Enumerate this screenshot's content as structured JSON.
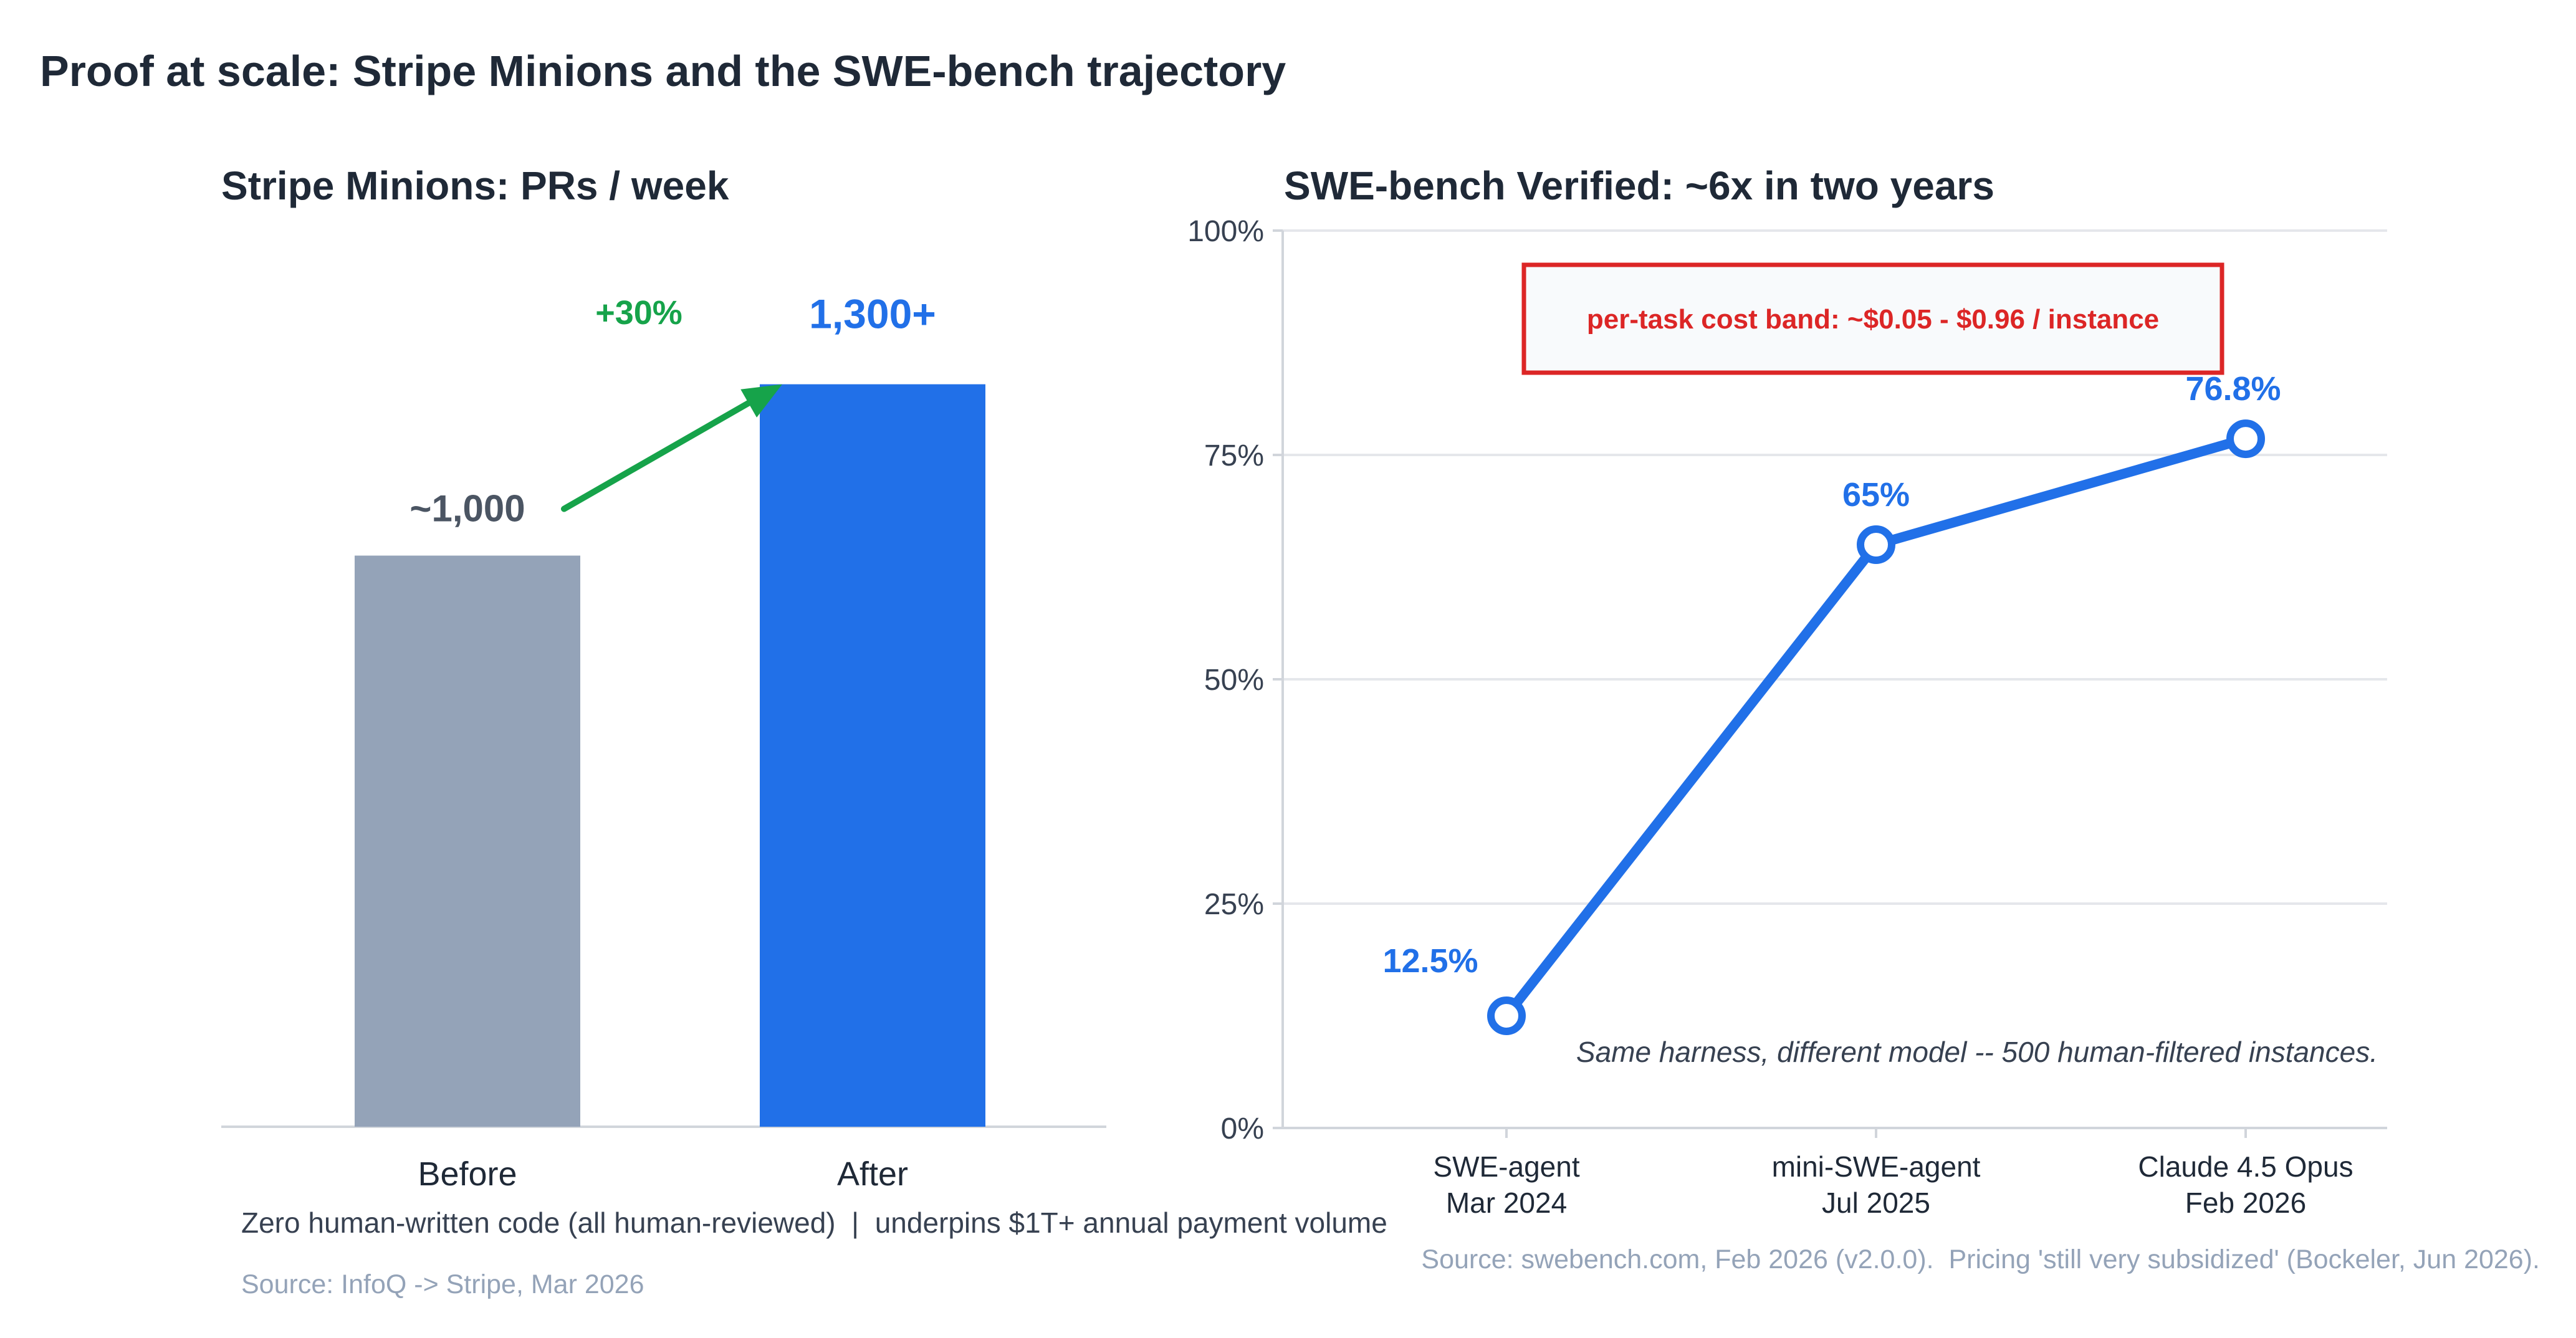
{
  "title": "Proof at scale: Stripe Minions and the SWE-bench trajectory",
  "colors": {
    "text_dark": "#1f2937",
    "bar_before": "#94a3b8",
    "bar_after": "#2170e8",
    "accent_blue": "#2170e8",
    "growth_green": "#16a34a",
    "callout_red": "#dc2626",
    "muted": "#94a3b8",
    "grid": "#e5e7eb",
    "axis": "#d1d5db"
  },
  "chart_data": [
    {
      "type": "bar",
      "title": "Stripe Minions: PRs / week",
      "categories": [
        "Before",
        "After"
      ],
      "values": [
        1000,
        1300
      ],
      "data_labels": [
        "~1,000",
        "1,300+"
      ],
      "ylim": [
        0,
        1700
      ],
      "grid": false,
      "annotation": {
        "text": "+30%",
        "from": "Before",
        "to": "After"
      },
      "footnote": "Zero human-written code (all human-reviewed)  |  underpins $1T+ annual payment volume",
      "source": "Source: InfoQ -> Stripe, Mar 2026"
    },
    {
      "type": "line",
      "title": "SWE-bench Verified: ~6x in two years",
      "categories": [
        "SWE-agent\nMar 2024",
        "mini-SWE-agent\nJul 2025",
        "Claude 4.5 Opus\nFeb 2026"
      ],
      "series": [
        {
          "values": [
            12.5,
            65,
            76.8
          ],
          "data_labels": [
            "12.5%",
            "65%",
            "76.8%"
          ]
        }
      ],
      "ylim": [
        0,
        100
      ],
      "yticks": [
        0,
        25,
        50,
        75,
        100
      ],
      "ytick_labels": [
        "0%",
        "25%",
        "50%",
        "75%",
        "100%"
      ],
      "grid": true,
      "callout": "per-task cost band: ~$0.05 - $0.96 / instance",
      "note": "Same harness, different model -- 500 human-filtered instances.",
      "source": "Source: swebench.com, Feb 2026 (v2.0.0).  Pricing 'still very subsidized' (Bockeler, Jun 2026)."
    }
  ]
}
